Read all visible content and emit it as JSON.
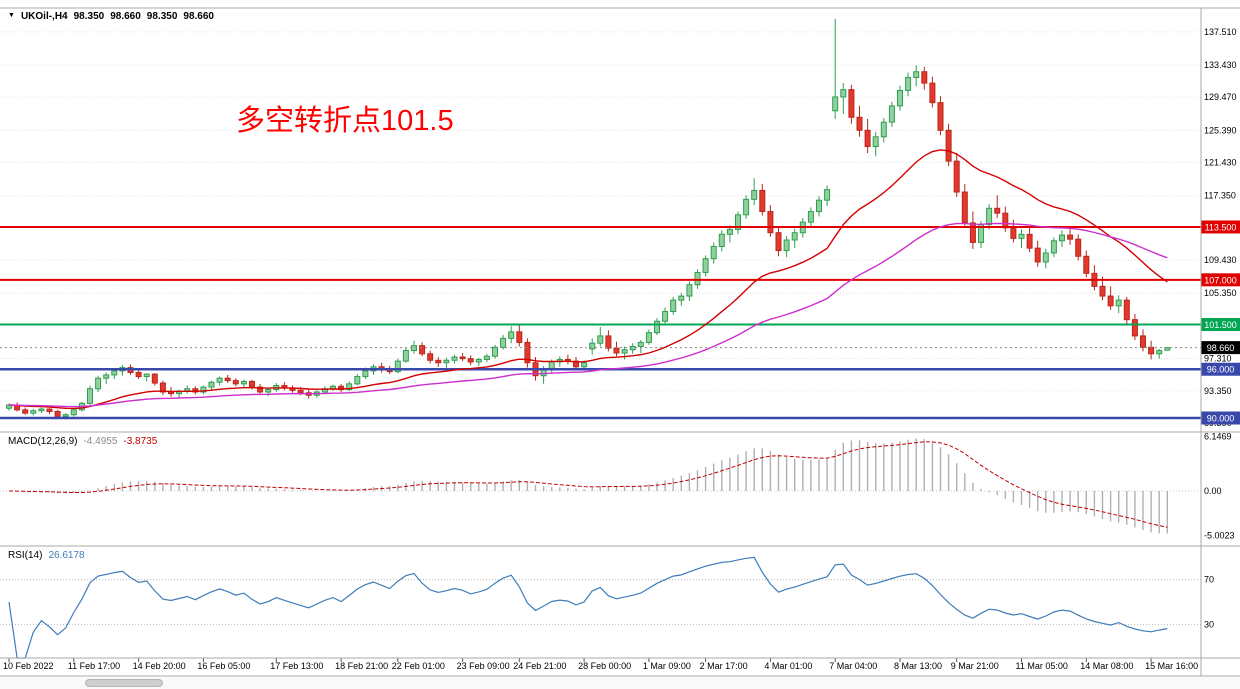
{
  "header": {
    "dropdown_icon": "▼",
    "symbol_period": "UKOil-,H4",
    "open": "98.350",
    "high": "98.660",
    "low": "98.350",
    "close": "98.660"
  },
  "annotation": {
    "text": "多空转折点101.5",
    "color": "#ff0000"
  },
  "macd_panel": {
    "name": "MACD(12,26,9)",
    "value_main": "-4.4955",
    "value_signal": "-3.8735"
  },
  "rsi_panel": {
    "name": "RSI(14)",
    "value": "26.6178"
  },
  "colors": {
    "bull_fill": "#8fd19e",
    "bull_stroke": "#2f9e4f",
    "bear_fill": "#e5382c",
    "bear_stroke": "#b7271d",
    "ma_fast": "#d40000",
    "ma_slow": "#cc2fcc",
    "line_red": "#e00000",
    "line_green": "#00a651",
    "line_blue": "#3949ab",
    "macd_hist": "#b0b0b0",
    "macd_signal": "#c00000",
    "rsi_line": "#3f7cba",
    "current_label_bg": "#000000",
    "grid": "#e0e0e0",
    "border": "#a8a8a8"
  },
  "chart_data": [
    {
      "type": "candlestick",
      "symbol": "UKOil-",
      "timeframe": "H4",
      "ylim": [
        88.3,
        140.4
      ],
      "y_ticks": [
        {
          "v": 137.51,
          "t": "137.510"
        },
        {
          "v": 133.43,
          "t": "133.430"
        },
        {
          "v": 129.47,
          "t": "129.470"
        },
        {
          "v": 125.39,
          "t": "125.390"
        },
        {
          "v": 121.43,
          "t": "121.430"
        },
        {
          "v": 117.35,
          "t": "117.350"
        },
        {
          "v": 109.43,
          "t": "109.430"
        },
        {
          "v": 105.35,
          "t": "105.350"
        },
        {
          "v": 97.31,
          "t": "97.310"
        },
        {
          "v": 93.35,
          "t": "93.350"
        },
        {
          "v": 89.39,
          "t": "89.390"
        }
      ],
      "x_labels": [
        {
          "text": "10 Feb 2022",
          "i": 0
        },
        {
          "text": "11 Feb 17:00",
          "i": 8
        },
        {
          "text": "14 Feb 20:00",
          "i": 16
        },
        {
          "text": "16 Feb 05:00",
          "i": 24
        },
        {
          "text": "17 Feb 13:00",
          "i": 33
        },
        {
          "text": "18 Feb 21:00",
          "i": 41
        },
        {
          "text": "22 Feb 01:00",
          "i": 48
        },
        {
          "text": "23 Feb 09:00",
          "i": 56
        },
        {
          "text": "24 Feb 21:00",
          "i": 63
        },
        {
          "text": "28 Feb 00:00",
          "i": 71
        },
        {
          "text": "1 Mar 09:00",
          "i": 79
        },
        {
          "text": "2 Mar 17:00",
          "i": 86
        },
        {
          "text": "4 Mar 01:00",
          "i": 94
        },
        {
          "text": "7 Mar 04:00",
          "i": 102
        },
        {
          "text": "8 Mar 13:00",
          "i": 110
        },
        {
          "text": "9 Mar 21:00",
          "i": 117
        },
        {
          "text": "11 Mar 05:00",
          "i": 125
        },
        {
          "text": "14 Mar 08:00",
          "i": 133
        },
        {
          "text": "15 Mar 16:00",
          "i": 141
        }
      ],
      "hlines": [
        {
          "value": 113.5,
          "label": "113.500",
          "color_key": "line_red",
          "width": 2
        },
        {
          "value": 107.0,
          "label": "107.000",
          "color_key": "line_red",
          "width": 2
        },
        {
          "value": 101.5,
          "label": "101.500",
          "color_key": "line_green",
          "width": 2
        },
        {
          "value": 96.0,
          "label": "96.000",
          "color_key": "line_blue",
          "width": 2.5
        },
        {
          "value": 90.0,
          "label": "90.000",
          "color_key": "line_blue",
          "width": 2.5
        }
      ],
      "current_price": {
        "value": 98.66,
        "label": "98.660"
      },
      "moving_averages": [
        {
          "period": 24,
          "color_key": "ma_fast"
        },
        {
          "period": 60,
          "color_key": "ma_slow"
        }
      ],
      "candles": [
        [
          91.2,
          91.8,
          90.9,
          91.6
        ],
        [
          91.6,
          91.9,
          90.8,
          91.0
        ],
        [
          91.0,
          91.3,
          90.4,
          90.6
        ],
        [
          90.6,
          91.1,
          90.3,
          90.9
        ],
        [
          90.9,
          91.3,
          90.6,
          91.1
        ],
        [
          91.1,
          91.2,
          90.5,
          90.8
        ],
        [
          90.8,
          91.0,
          89.9,
          90.2
        ],
        [
          90.2,
          90.6,
          89.8,
          90.4
        ],
        [
          90.4,
          91.2,
          90.2,
          91.0
        ],
        [
          91.0,
          92.0,
          90.8,
          91.8
        ],
        [
          91.8,
          94.0,
          91.6,
          93.6
        ],
        [
          93.6,
          95.2,
          93.2,
          94.9
        ],
        [
          94.9,
          95.6,
          94.2,
          95.3
        ],
        [
          95.3,
          96.1,
          94.8,
          95.8
        ],
        [
          95.8,
          96.5,
          95.2,
          96.2
        ],
        [
          96.2,
          96.6,
          95.3,
          95.6
        ],
        [
          95.6,
          96.0,
          94.8,
          95.1
        ],
        [
          95.1,
          95.5,
          94.5,
          95.4
        ],
        [
          95.4,
          95.5,
          94.0,
          94.3
        ],
        [
          94.3,
          94.6,
          92.8,
          93.2
        ],
        [
          93.2,
          93.8,
          92.6,
          93.0
        ],
        [
          93.0,
          93.5,
          92.5,
          93.3
        ],
        [
          93.3,
          94.0,
          93.0,
          93.6
        ],
        [
          93.6,
          93.9,
          92.9,
          93.2
        ],
        [
          93.2,
          94.0,
          92.9,
          93.8
        ],
        [
          93.8,
          94.6,
          93.5,
          94.4
        ],
        [
          94.4,
          95.1,
          94.0,
          94.9
        ],
        [
          94.9,
          95.3,
          94.3,
          94.6
        ],
        [
          94.6,
          94.9,
          93.9,
          94.2
        ],
        [
          94.2,
          94.7,
          93.8,
          94.5
        ],
        [
          94.5,
          94.7,
          93.5,
          93.8
        ],
        [
          93.8,
          94.2,
          92.9,
          93.2
        ],
        [
          93.2,
          93.7,
          92.7,
          93.5
        ],
        [
          93.5,
          94.3,
          93.2,
          94.0
        ],
        [
          94.0,
          94.4,
          93.4,
          93.7
        ],
        [
          93.7,
          94.0,
          93.1,
          93.4
        ],
        [
          93.4,
          93.8,
          92.8,
          93.1
        ],
        [
          93.1,
          93.5,
          92.4,
          92.8
        ],
        [
          92.8,
          93.4,
          92.5,
          93.2
        ],
        [
          93.2,
          93.9,
          93.0,
          93.6
        ],
        [
          93.6,
          94.1,
          93.3,
          93.9
        ],
        [
          93.9,
          94.2,
          93.2,
          93.5
        ],
        [
          93.5,
          94.5,
          93.3,
          94.2
        ],
        [
          94.2,
          95.4,
          94.0,
          95.1
        ],
        [
          95.1,
          96.2,
          94.8,
          95.8
        ],
        [
          95.8,
          96.6,
          95.3,
          96.3
        ],
        [
          96.3,
          96.8,
          95.6,
          96.0
        ],
        [
          96.0,
          96.4,
          95.4,
          95.7
        ],
        [
          95.7,
          97.3,
          95.5,
          97.0
        ],
        [
          97.0,
          98.6,
          96.8,
          98.3
        ],
        [
          98.3,
          99.5,
          97.9,
          98.9
        ],
        [
          98.9,
          99.3,
          97.6,
          97.9
        ],
        [
          97.9,
          98.3,
          96.7,
          97.1
        ],
        [
          97.1,
          97.5,
          96.3,
          96.8
        ],
        [
          96.8,
          97.4,
          96.2,
          97.1
        ],
        [
          97.1,
          97.8,
          96.7,
          97.5
        ],
        [
          97.5,
          98.0,
          97.0,
          97.3
        ],
        [
          97.3,
          97.7,
          96.5,
          96.9
        ],
        [
          96.9,
          97.4,
          96.4,
          97.2
        ],
        [
          97.2,
          97.9,
          96.9,
          97.6
        ],
        [
          97.6,
          99.0,
          97.3,
          98.7
        ],
        [
          98.7,
          100.2,
          98.4,
          99.8
        ],
        [
          99.8,
          101.3,
          99.2,
          100.6
        ],
        [
          100.6,
          101.6,
          98.8,
          99.3
        ],
        [
          99.3,
          99.8,
          96.2,
          96.8
        ],
        [
          96.8,
          97.5,
          94.6,
          95.2
        ],
        [
          95.2,
          96.4,
          94.2,
          96.0
        ],
        [
          96.0,
          97.2,
          95.6,
          96.9
        ],
        [
          96.9,
          97.6,
          96.3,
          97.2
        ],
        [
          97.2,
          97.8,
          96.6,
          97.0
        ],
        [
          97.0,
          97.5,
          95.9,
          96.3
        ],
        [
          96.3,
          97.1,
          95.8,
          96.8
        ],
        [
          98.5,
          99.8,
          97.8,
          99.2
        ],
        [
          99.2,
          101.2,
          98.8,
          100.1
        ],
        [
          100.1,
          100.8,
          98.2,
          98.6
        ],
        [
          98.6,
          99.4,
          97.6,
          98.0
        ],
        [
          98.0,
          98.8,
          97.2,
          98.4
        ],
        [
          98.4,
          99.2,
          97.9,
          98.8
        ],
        [
          98.8,
          99.6,
          98.0,
          99.3
        ],
        [
          99.3,
          100.9,
          99.0,
          100.5
        ],
        [
          100.5,
          102.3,
          100.2,
          101.9
        ],
        [
          101.9,
          103.6,
          101.5,
          103.1
        ],
        [
          103.1,
          104.9,
          102.7,
          104.5
        ],
        [
          104.5,
          105.4,
          103.8,
          105.0
        ],
        [
          105.0,
          106.8,
          104.4,
          106.4
        ],
        [
          106.4,
          108.3,
          105.9,
          107.9
        ],
        [
          107.9,
          110.0,
          107.4,
          109.6
        ],
        [
          109.6,
          111.6,
          109.0,
          111.1
        ],
        [
          111.1,
          113.1,
          110.5,
          112.6
        ],
        [
          112.6,
          113.7,
          111.6,
          113.2
        ],
        [
          113.2,
          115.4,
          112.6,
          115.0
        ],
        [
          115.0,
          117.4,
          114.5,
          116.9
        ],
        [
          116.9,
          119.5,
          116.2,
          118.0
        ],
        [
          118.0,
          118.8,
          114.9,
          115.4
        ],
        [
          115.4,
          116.2,
          112.3,
          112.8
        ],
        [
          112.8,
          113.5,
          109.9,
          110.6
        ],
        [
          110.6,
          112.4,
          109.8,
          111.9
        ],
        [
          111.9,
          113.3,
          110.9,
          112.8
        ],
        [
          112.8,
          114.6,
          112.2,
          114.1
        ],
        [
          114.1,
          115.9,
          113.5,
          115.4
        ],
        [
          115.4,
          117.3,
          114.8,
          116.8
        ],
        [
          116.8,
          118.6,
          116.1,
          118.1
        ],
        [
          127.8,
          139.1,
          126.8,
          129.5
        ],
        [
          129.5,
          131.2,
          127.4,
          130.4
        ],
        [
          130.4,
          131.0,
          126.2,
          127.0
        ],
        [
          127.0,
          128.4,
          124.6,
          125.4
        ],
        [
          125.4,
          126.8,
          122.6,
          123.4
        ],
        [
          123.4,
          125.2,
          122.2,
          124.6
        ],
        [
          124.6,
          126.9,
          123.9,
          126.4
        ],
        [
          126.4,
          128.9,
          125.8,
          128.4
        ],
        [
          128.4,
          130.9,
          127.8,
          130.3
        ],
        [
          130.3,
          132.5,
          129.6,
          131.9
        ],
        [
          131.9,
          133.4,
          130.8,
          132.6
        ],
        [
          132.6,
          133.2,
          130.4,
          131.2
        ],
        [
          131.2,
          132.0,
          128.2,
          128.8
        ],
        [
          128.8,
          129.6,
          124.8,
          125.4
        ],
        [
          125.4,
          126.2,
          121.0,
          121.6
        ],
        [
          121.6,
          122.6,
          117.2,
          117.8
        ],
        [
          117.8,
          118.8,
          113.4,
          114.0
        ],
        [
          114.0,
          115.4,
          110.8,
          111.6
        ],
        [
          111.6,
          114.2,
          110.9,
          113.8
        ],
        [
          113.8,
          116.3,
          113.2,
          115.8
        ],
        [
          115.8,
          117.4,
          114.6,
          115.2
        ],
        [
          115.2,
          116.0,
          112.9,
          113.4
        ],
        [
          113.4,
          114.4,
          111.6,
          112.1
        ],
        [
          112.1,
          113.2,
          110.9,
          112.6
        ],
        [
          112.6,
          113.4,
          110.4,
          110.9
        ],
        [
          110.9,
          111.8,
          108.6,
          109.2
        ],
        [
          109.2,
          110.8,
          108.4,
          110.3
        ],
        [
          110.3,
          112.2,
          109.8,
          111.8
        ],
        [
          111.8,
          113.1,
          111.0,
          112.5
        ],
        [
          112.5,
          113.3,
          111.3,
          112.0
        ],
        [
          112.0,
          112.6,
          109.4,
          109.9
        ],
        [
          109.9,
          110.6,
          107.3,
          107.8
        ],
        [
          107.8,
          108.8,
          105.7,
          106.2
        ],
        [
          106.2,
          107.4,
          104.5,
          105.0
        ],
        [
          105.0,
          106.2,
          103.3,
          103.8
        ],
        [
          103.8,
          105.1,
          102.9,
          104.5
        ],
        [
          104.5,
          104.9,
          101.6,
          102.1
        ],
        [
          102.1,
          102.8,
          99.6,
          100.1
        ],
        [
          100.1,
          100.9,
          98.2,
          98.7
        ],
        [
          98.7,
          99.5,
          97.2,
          97.9
        ],
        [
          97.9,
          98.5,
          97.3,
          98.3
        ],
        [
          98.35,
          98.66,
          98.35,
          98.66
        ]
      ]
    },
    {
      "type": "macd",
      "params": [
        12,
        26,
        9
      ],
      "current": {
        "macd": -4.4955,
        "signal": -3.8735
      },
      "y_ticks": [
        {
          "v": 6.1469,
          "t": "6.1469"
        },
        {
          "v": 0,
          "t": "0.00"
        },
        {
          "v": -5.0023,
          "t": "-5.0023"
        }
      ],
      "ylim": [
        -6.2,
        6.7
      ]
    },
    {
      "type": "rsi",
      "period": 14,
      "current": 26.6178,
      "levels": [
        {
          "v": 70,
          "t": "70"
        },
        {
          "v": 30,
          "t": "30"
        }
      ],
      "ylim": [
        0,
        100
      ]
    }
  ]
}
